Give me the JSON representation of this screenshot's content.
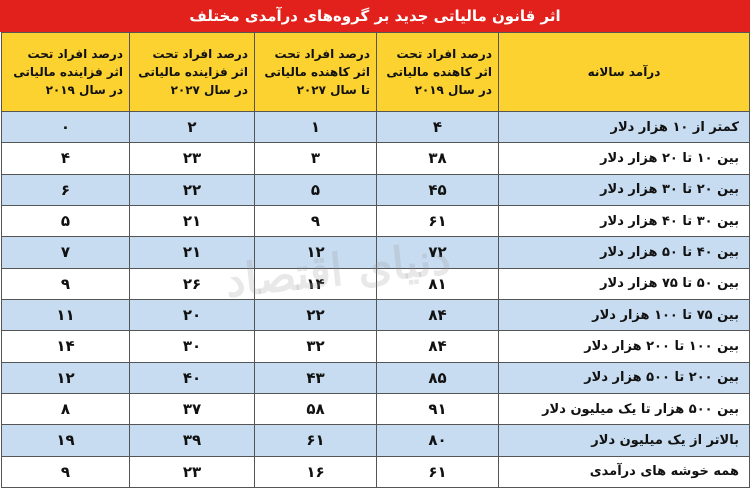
{
  "title": "اثر قانون مالیاتی جدید بر گروه‌های درآمدی مختلف",
  "columns": [
    "درآمد سالانه",
    "درصد افراد تحت اثر کاهنده مالیاتی در سال ۲۰۱۹",
    "درصد افراد تحت اثر کاهنده مالیاتی تا سال ۲۰۲۷",
    "درصد افراد تحت اثر فزاینده مالیاتی در سال ۲۰۲۷",
    "درصد افراد تحت اثر فزاینده مالیاتی در سال ۲۰۱۹"
  ],
  "rows": [
    [
      "کمتر از ۱۰ هزار دلار",
      "۴",
      "۱",
      "۲",
      "۰"
    ],
    [
      "بین ۱۰ تا ۲۰ هزار دلار",
      "۳۸",
      "۳",
      "۲۳",
      "۴"
    ],
    [
      "بین ۲۰ تا ۳۰ هزار دلار",
      "۴۵",
      "۵",
      "۲۲",
      "۶"
    ],
    [
      "بین ۳۰ تا ۴۰ هزار دلار",
      "۶۱",
      "۹",
      "۲۱",
      "۵"
    ],
    [
      "بین ۴۰ تا ۵۰ هزار دلار",
      "۷۲",
      "۱۲",
      "۲۱",
      "۷"
    ],
    [
      "بین ۵۰ تا ۷۵ هزار دلار",
      "۸۱",
      "۱۴",
      "۲۶",
      "۹"
    ],
    [
      "بین ۷۵ تا ۱۰۰ هزار دلار",
      "۸۴",
      "۲۲",
      "۲۰",
      "۱۱"
    ],
    [
      "بین ۱۰۰ تا ۲۰۰ هزار دلار",
      "۸۴",
      "۳۲",
      "۳۰",
      "۱۴"
    ],
    [
      "بین ۲۰۰ تا ۵۰۰ هزار دلار",
      "۸۵",
      "۴۳",
      "۴۰",
      "۱۲"
    ],
    [
      "بین ۵۰۰ هزار تا یک میلیون دلار",
      "۹۱",
      "۵۸",
      "۳۷",
      "۸"
    ],
    [
      "بالاتر از یک میلیون دلار",
      "۸۰",
      "۶۱",
      "۳۹",
      "۱۹"
    ],
    [
      "همه خوشه های درآمدی",
      "۶۱",
      "۱۶",
      "۲۳",
      "۹"
    ]
  ],
  "watermark": "دنیای اقتصاد",
  "colors": {
    "title_bg": "#e2211c",
    "header_bg": "#fcd230",
    "row_alt": "#c7dcf0"
  }
}
